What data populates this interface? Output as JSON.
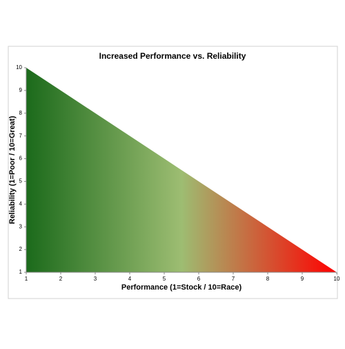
{
  "chart_data": {
    "type": "area",
    "title": "Increased Performance vs. Reliability",
    "x_label": "Performance (1=Stock / 10=Race)",
    "y_label": "Reliability (1=Poor / 10=Great)",
    "x": [
      1,
      2,
      3,
      4,
      5,
      6,
      7,
      8,
      9,
      10
    ],
    "values": [
      10,
      9,
      8,
      7,
      6,
      5,
      4,
      3,
      2,
      1
    ],
    "gradient_colors": [
      "#1b6a1b",
      "#9dbd72",
      "#ff0000"
    ],
    "xlim": [
      1,
      10
    ],
    "ylim": [
      1,
      10
    ],
    "xticks": [
      1,
      2,
      3,
      4,
      5,
      6,
      7,
      8,
      9,
      10
    ],
    "yticks": [
      1,
      2,
      3,
      4,
      5,
      6,
      7,
      8,
      9,
      10
    ],
    "grid": false
  }
}
